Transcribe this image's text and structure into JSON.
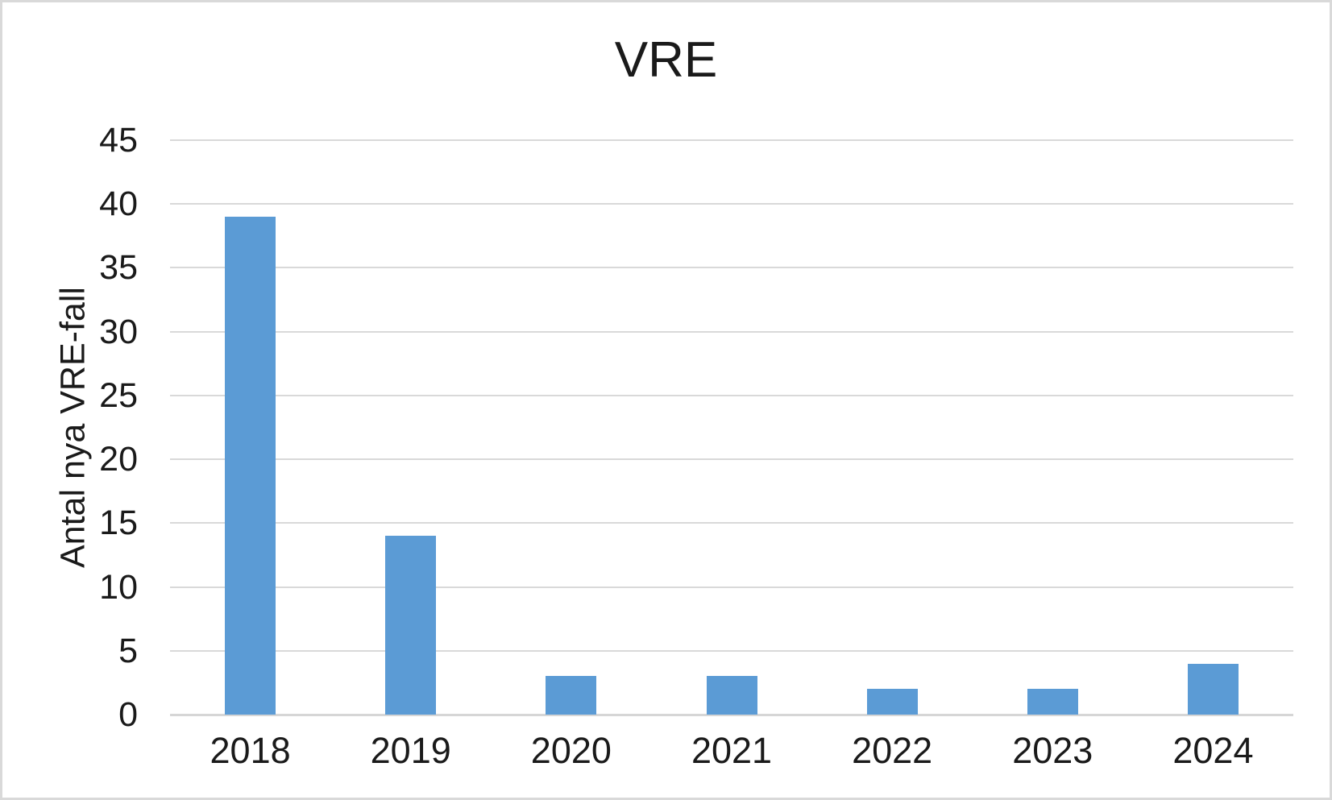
{
  "chart_data": {
    "type": "bar",
    "title": "VRE",
    "categories": [
      "2018",
      "2019",
      "2020",
      "2021",
      "2022",
      "2023",
      "2024"
    ],
    "values": [
      39,
      14,
      3,
      3,
      2,
      2,
      4
    ],
    "xlabel": "",
    "ylabel": "Antal nya VRE-fall",
    "ylim": [
      0,
      45
    ],
    "ytick_step": 5,
    "yticks": [
      0,
      5,
      10,
      15,
      20,
      25,
      30,
      35,
      40,
      45
    ],
    "grid": "horizontal",
    "legend": "none",
    "bar_color": "#5B9BD5",
    "gridline_color": "#D9D9D9",
    "axis_line_color": "#D6D6D6",
    "text_color": "#1a1a1a",
    "background_color": "#FFFFFF",
    "frame_border_color": "#D9D9D9"
  }
}
